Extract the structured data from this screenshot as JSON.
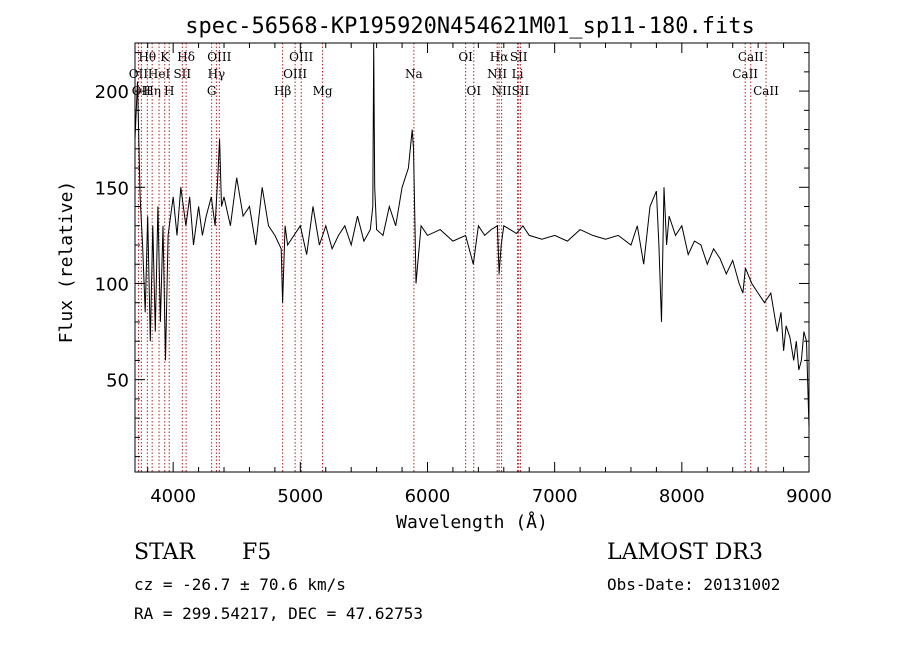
{
  "chart_data": {
    "type": "line",
    "title": "spec-56568-KP195920N454621M01_sp11-180.fits",
    "xlabel": "Wavelength (Å)",
    "ylabel": "Flux (relative)",
    "xlim": [
      3700,
      9000
    ],
    "ylim": [
      2,
      225
    ],
    "xticks": [
      4000,
      5000,
      6000,
      7000,
      8000,
      9000
    ],
    "yticks": [
      50,
      100,
      150,
      200
    ],
    "series": [
      {
        "name": "flux",
        "x": [
          3700,
          3720,
          3740,
          3760,
          3780,
          3800,
          3820,
          3840,
          3860,
          3880,
          3900,
          3920,
          3940,
          3960,
          3980,
          4000,
          4030,
          4060,
          4100,
          4130,
          4160,
          4200,
          4230,
          4260,
          4300,
          4330,
          4350,
          4365,
          4380,
          4400,
          4450,
          4500,
          4550,
          4600,
          4650,
          4700,
          4750,
          4800,
          4850,
          4861,
          4880,
          4900,
          4950,
          5000,
          5050,
          5100,
          5150,
          5200,
          5250,
          5300,
          5350,
          5400,
          5450,
          5500,
          5550,
          5570,
          5577,
          5585,
          5600,
          5650,
          5700,
          5750,
          5800,
          5850,
          5880,
          5890,
          5900,
          5910,
          5950,
          6000,
          6100,
          6200,
          6300,
          6360,
          6400,
          6450,
          6500,
          6550,
          6563,
          6580,
          6600,
          6650,
          6700,
          6750,
          6800,
          6900,
          7000,
          7100,
          7200,
          7300,
          7400,
          7500,
          7600,
          7650,
          7700,
          7750,
          7800,
          7820,
          7840,
          7860,
          7880,
          7900,
          7950,
          8000,
          8050,
          8100,
          8150,
          8200,
          8250,
          8300,
          8350,
          8400,
          8450,
          8480,
          8500,
          8550,
          8600,
          8650,
          8700,
          8750,
          8780,
          8800,
          8820,
          8850,
          8880,
          8900,
          8920,
          8940,
          8960,
          8980,
          9000
        ],
        "y": [
          175,
          205,
          145,
          120,
          85,
          135,
          70,
          130,
          75,
          140,
          80,
          130,
          60,
          125,
          135,
          145,
          125,
          150,
          130,
          145,
          120,
          140,
          125,
          135,
          145,
          130,
          155,
          175,
          140,
          145,
          130,
          155,
          135,
          140,
          120,
          150,
          130,
          125,
          118,
          90,
          130,
          120,
          125,
          130,
          115,
          140,
          120,
          130,
          118,
          125,
          130,
          120,
          135,
          122,
          128,
          140,
          225,
          150,
          128,
          125,
          140,
          130,
          150,
          160,
          180,
          170,
          135,
          100,
          130,
          125,
          128,
          122,
          125,
          110,
          130,
          125,
          128,
          130,
          105,
          120,
          130,
          128,
          126,
          130,
          125,
          123,
          125,
          122,
          128,
          125,
          123,
          125,
          120,
          130,
          110,
          140,
          148,
          120,
          80,
          150,
          120,
          135,
          125,
          130,
          115,
          122,
          120,
          110,
          118,
          113,
          105,
          112,
          100,
          95,
          108,
          100,
          95,
          90,
          95,
          75,
          85,
          65,
          78,
          72,
          60,
          70,
          55,
          60,
          75,
          70,
          25
        ]
      }
    ],
    "lines": [
      {
        "wl": 3727,
        "label": "OII",
        "row": 1
      },
      {
        "wl": 3750,
        "label": "OII",
        "row": 2
      },
      {
        "wl": 3797,
        "label": "Hθ",
        "row": 0
      },
      {
        "wl": 3835,
        "label": "Hη",
        "row": 2
      },
      {
        "wl": 3889,
        "label": "HeI",
        "row": 1
      },
      {
        "wl": 3934,
        "label": "K",
        "row": 0
      },
      {
        "wl": 3969,
        "label": "H",
        "row": 2
      },
      {
        "wl": 4072,
        "label": "SII",
        "row": 1
      },
      {
        "wl": 4102,
        "label": "Hδ",
        "row": 0
      },
      {
        "wl": 4303,
        "label": "G",
        "row": 2
      },
      {
        "wl": 4340,
        "label": "Hγ",
        "row": 1
      },
      {
        "wl": 4363,
        "label": "OIII",
        "row": 0
      },
      {
        "wl": 4861,
        "label": "Hβ",
        "row": 2
      },
      {
        "wl": 4959,
        "label": "OIII",
        "row": 1
      },
      {
        "wl": 5007,
        "label": "OIII",
        "row": 0
      },
      {
        "wl": 5175,
        "label": "Mg",
        "row": 2
      },
      {
        "wl": 5893,
        "label": "Na",
        "row": 1
      },
      {
        "wl": 6300,
        "label": "OI",
        "row": 0
      },
      {
        "wl": 6364,
        "label": "OI",
        "row": 2
      },
      {
        "wl": 6548,
        "label": "NII",
        "row": 1
      },
      {
        "wl": 6563,
        "label": "Hα",
        "row": 0
      },
      {
        "wl": 6583,
        "label": "NII",
        "row": 2
      },
      {
        "wl": 6708,
        "label": "Li",
        "row": 1
      },
      {
        "wl": 6717,
        "label": "SII",
        "row": 0
      },
      {
        "wl": 6731,
        "label": "SII",
        "row": 2
      },
      {
        "wl": 8498,
        "label": "CaII",
        "row": 1
      },
      {
        "wl": 8542,
        "label": "CaII",
        "row": 0
      },
      {
        "wl": 8662,
        "label": "CaII",
        "row": 2
      }
    ]
  },
  "info": {
    "class_label": "STAR",
    "subclass": "F5",
    "survey": "LAMOST DR3",
    "cz_text": "cz = -26.7 ± 70.6 km/s",
    "obs_date": "Obs-Date: 20131002",
    "coords_text": "RA = 299.54217, DEC =  47.62753"
  },
  "colors": {
    "axis": "#000000",
    "spectrum": "#000000",
    "line_marker": "#b22222"
  }
}
